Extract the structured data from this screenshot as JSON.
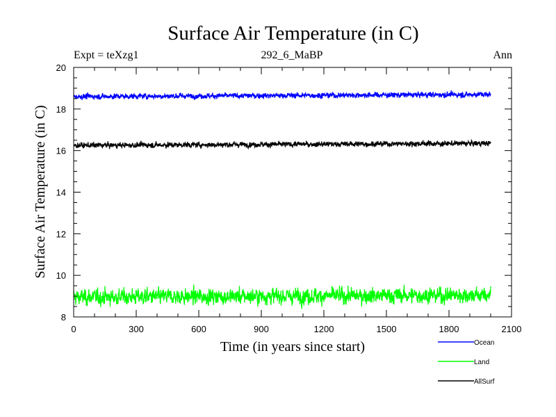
{
  "chart_data": {
    "type": "line",
    "title": "Surface Air Temperature (in C)",
    "subtitle_left": "Expt = teXzg1",
    "subtitle_center": "292_6_MaBP",
    "subtitle_right": "Ann",
    "xlabel": "Time (in years since start)",
    "ylabel": "Surface Air Temperature (in C)",
    "xlim": [
      0,
      2100
    ],
    "ylim": [
      8,
      20
    ],
    "x_ticks": [
      0,
      300,
      600,
      900,
      1200,
      1500,
      1800,
      2100
    ],
    "x_tick_labels": [
      "0",
      "300",
      "600",
      "900",
      "1200",
      "1500",
      "1800",
      "2100"
    ],
    "y_ticks": [
      8,
      10,
      12,
      14,
      16,
      18,
      20
    ],
    "y_tick_labels": [
      "8",
      "10",
      "12",
      "14",
      "16",
      "18",
      "20"
    ],
    "grid": false,
    "legend_position": "bottom-right, below plot",
    "series": [
      {
        "name": "Ocean",
        "color": "#0000ff",
        "x_start": 0,
        "x_end": 2000,
        "mean": 18.6,
        "amplitude": 0.12,
        "trend_end": 18.7
      },
      {
        "name": "Land",
        "color": "#00ff00",
        "x_start": 0,
        "x_end": 2000,
        "mean": 8.95,
        "amplitude": 0.35,
        "trend_end": 9.05
      },
      {
        "name": "AllSurf",
        "color": "#000000",
        "x_start": 0,
        "x_end": 2000,
        "mean": 16.25,
        "amplitude": 0.12,
        "trend_end": 16.35
      }
    ]
  }
}
